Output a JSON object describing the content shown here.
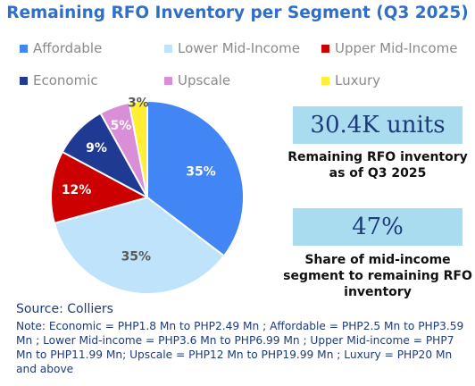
{
  "chart_data": {
    "type": "pie",
    "title": "Remaining RFO Inventory per Segment (Q3 2025)",
    "slices": [
      {
        "label": "Affordable",
        "value": 35,
        "display": "35%",
        "color": "#4285f4"
      },
      {
        "label": "Lower Mid-Income",
        "value": 35,
        "display": "35%",
        "color": "#bfe3fb"
      },
      {
        "label": "Upper Mid-Income",
        "value": 12,
        "display": "12%",
        "color": "#cc0000"
      },
      {
        "label": "Economic",
        "value": 9,
        "display": "9%",
        "color": "#1f3a93"
      },
      {
        "label": "Upscale",
        "value": 5,
        "display": "5%",
        "color": "#d98ed7"
      },
      {
        "label": "Luxury",
        "value": 3,
        "display": "3%",
        "color": "#ffee33"
      }
    ],
    "legend": [
      [
        "Affordable",
        "Lower Mid-Income",
        "Upper Mid-Income"
      ],
      [
        "Economic",
        "Upscale",
        "Luxury"
      ]
    ],
    "legend_position": "top",
    "start_angle": "12 o'clock",
    "direction": "clockwise"
  },
  "kpis": [
    {
      "value": "30.4K units",
      "label": "Remaining RFO inventory as of Q3 2025"
    },
    {
      "value": "47%",
      "label": "Share of mid-income segment to remaining RFO inventory"
    }
  ],
  "source": "Source: Colliers",
  "note": "Note: Economic = PHP1.8 Mn to PHP2.49 Mn ; Affordable = PHP2.5 Mn to PHP3.59 Mn ; Lower Mid-income = PHP3.6 Mn to PHP6.99 Mn ; Upper Mid-income = PHP7 Mn to PHP11.99 Mn; Upscale = PHP12 Mn to PHP19.99 Mn ; Luxury = PHP20 Mn and above"
}
